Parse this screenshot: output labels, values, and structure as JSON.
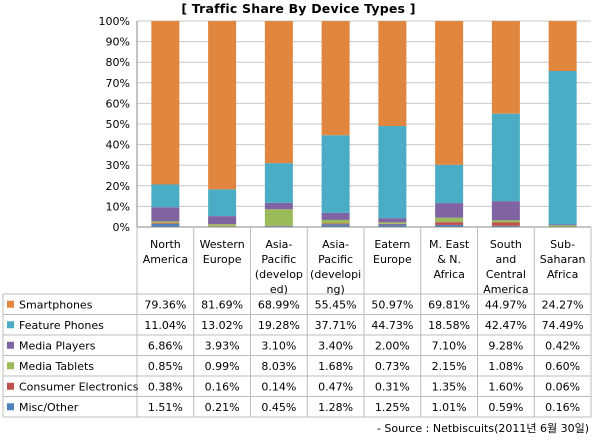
{
  "chart_data": {
    "type": "bar",
    "stacked": true,
    "title": "[ Traffic Share By Device Types ]",
    "categories": [
      [
        "North",
        "America"
      ],
      [
        "Western",
        "Europe"
      ],
      [
        "Asia-",
        "Pacific",
        "(develop",
        "ed)"
      ],
      [
        "Asia-",
        "Pacific",
        "(developi",
        "ng)"
      ],
      [
        "Eatern",
        "Europe"
      ],
      [
        "M. East",
        "& N.",
        "Africa"
      ],
      [
        "South",
        "and",
        "Central",
        "America"
      ],
      [
        "Sub-",
        "Saharan",
        "Africa"
      ]
    ],
    "ylim": [
      0,
      100
    ],
    "yticks": [
      "0%",
      "10%",
      "20%",
      "30%",
      "40%",
      "50%",
      "60%",
      "70%",
      "80%",
      "90%",
      "100%"
    ],
    "grid": true,
    "legend": "table",
    "series": [
      {
        "name": "Misc/Other",
        "color": "#4f81bd",
        "values": [
          1.51,
          0.21,
          0.45,
          1.28,
          1.25,
          1.01,
          0.59,
          0.16
        ],
        "labels": [
          "1.51%",
          "0.21%",
          "0.45%",
          "1.28%",
          "1.25%",
          "1.01%",
          "0.59%",
          "0.16%"
        ]
      },
      {
        "name": "Consumer Electronics",
        "color": "#c0504d",
        "values": [
          0.38,
          0.16,
          0.14,
          0.47,
          0.31,
          1.35,
          1.6,
          0.06
        ],
        "labels": [
          "0.38%",
          "0.16%",
          "0.14%",
          "0.47%",
          "0.31%",
          "1.35%",
          "1.60%",
          "0.06%"
        ]
      },
      {
        "name": "Media Tablets",
        "color": "#9bbb59",
        "values": [
          0.85,
          0.99,
          8.03,
          1.68,
          0.73,
          2.15,
          1.08,
          0.6
        ],
        "labels": [
          "0.85%",
          "0.99%",
          "8.03%",
          "1.68%",
          "0.73%",
          "2.15%",
          "1.08%",
          "0.60%"
        ]
      },
      {
        "name": "Media Players",
        "color": "#8064a2",
        "values": [
          6.86,
          3.93,
          3.1,
          3.4,
          2.0,
          7.1,
          9.28,
          0.42
        ],
        "labels": [
          "6.86%",
          "3.93%",
          "3.10%",
          "3.40%",
          "2.00%",
          "7.10%",
          "9.28%",
          "0.42%"
        ]
      },
      {
        "name": "Feature Phones",
        "color": "#4bacc6",
        "values": [
          11.04,
          13.02,
          19.28,
          37.71,
          44.73,
          18.58,
          42.47,
          74.49
        ],
        "labels": [
          "11.04%",
          "13.02%",
          "19.28%",
          "37.71%",
          "44.73%",
          "18.58%",
          "42.47%",
          "74.49%"
        ]
      },
      {
        "name": "Smartphones",
        "color": "#e0863f",
        "values": [
          79.36,
          81.69,
          68.99,
          55.45,
          50.97,
          69.81,
          44.97,
          24.27
        ],
        "labels": [
          "79.36%",
          "81.69%",
          "68.99%",
          "55.45%",
          "50.97%",
          "69.81%",
          "44.97%",
          "24.27%"
        ]
      }
    ]
  },
  "source_note": "- Source : Netbiscuits(2011년 6월 30일)"
}
